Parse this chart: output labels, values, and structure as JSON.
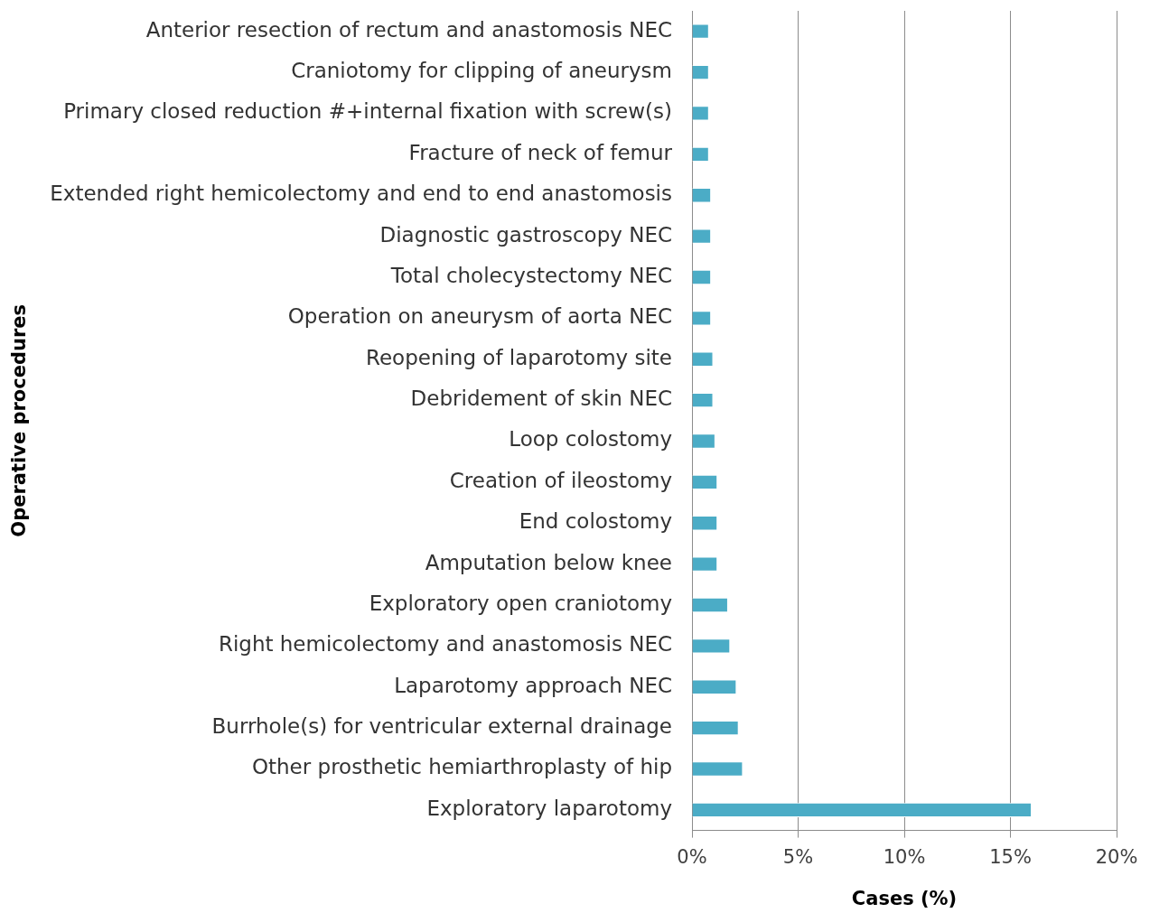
{
  "chart_data": {
    "type": "bar",
    "orientation": "horizontal",
    "categories": [
      "Anterior resection of rectum and anastomosis NEC",
      "Craniotomy for clipping of aneurysm",
      "Primary closed reduction #+internal fixation with screw(s)",
      "Fracture of neck of femur",
      "Extended right hemicolectomy and end to end anastomosis",
      "Diagnostic gastroscopy NEC",
      "Total cholecystectomy NEC",
      "Operation on aneurysm of aorta NEC",
      "Reopening of laparotomy site",
      "Debridement of skin NEC",
      "Loop colostomy",
      "Creation of ileostomy",
      "End colostomy",
      "Amputation below knee",
      "Exploratory open craniotomy",
      "Right hemicolectomy and anastomosis NEC",
      "Laparotomy approach NEC",
      "Burrhole(s) for ventricular external drainage",
      "Other prosthetic hemiarthroplasty of hip",
      "Exploratory laparotomy"
    ],
    "values": [
      0.8,
      0.8,
      0.8,
      0.8,
      0.9,
      0.9,
      0.9,
      0.9,
      1.0,
      1.0,
      1.1,
      1.2,
      1.2,
      1.2,
      1.7,
      1.8,
      2.1,
      2.2,
      2.4,
      16.0
    ],
    "color": "#4bacc6",
    "xlim": [
      0,
      20
    ],
    "xticks": [
      {
        "value": 0,
        "label": "0%"
      },
      {
        "value": 5,
        "label": "5%"
      },
      {
        "value": 10,
        "label": "10%"
      },
      {
        "value": 15,
        "label": "15%"
      },
      {
        "value": 20,
        "label": "20%"
      }
    ],
    "xlabel": "Cases (%)",
    "ylabel": "Operative procedures",
    "grid": "x"
  }
}
